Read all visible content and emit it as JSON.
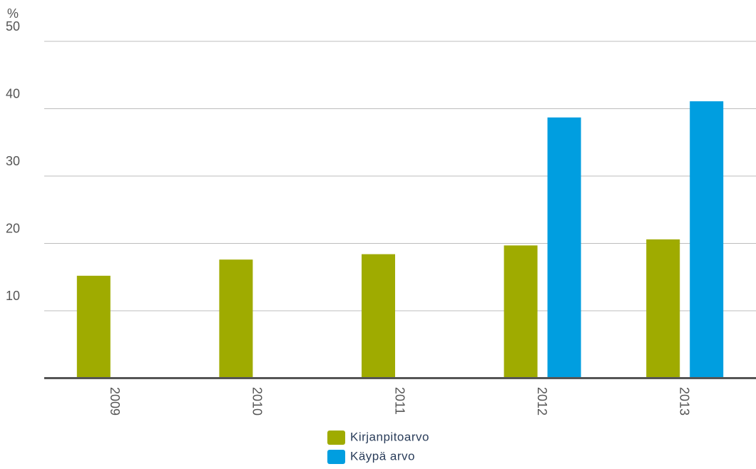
{
  "chart_data": {
    "type": "bar",
    "y_axis_label": "%",
    "categories": [
      "2009",
      "2010",
      "2011",
      "2012",
      "2013"
    ],
    "series": [
      {
        "name": "Kirjanpitoarvo",
        "color": "#9fab00",
        "values": [
          15.2,
          17.6,
          18.4,
          19.7,
          20.6
        ]
      },
      {
        "name": "Käypä arvo",
        "color": "#009ee0",
        "values": [
          null,
          null,
          null,
          38.7,
          41.1
        ]
      }
    ],
    "ylim": [
      0,
      50
    ],
    "yticks": [
      10,
      20,
      30,
      40,
      50
    ],
    "grid": true
  }
}
